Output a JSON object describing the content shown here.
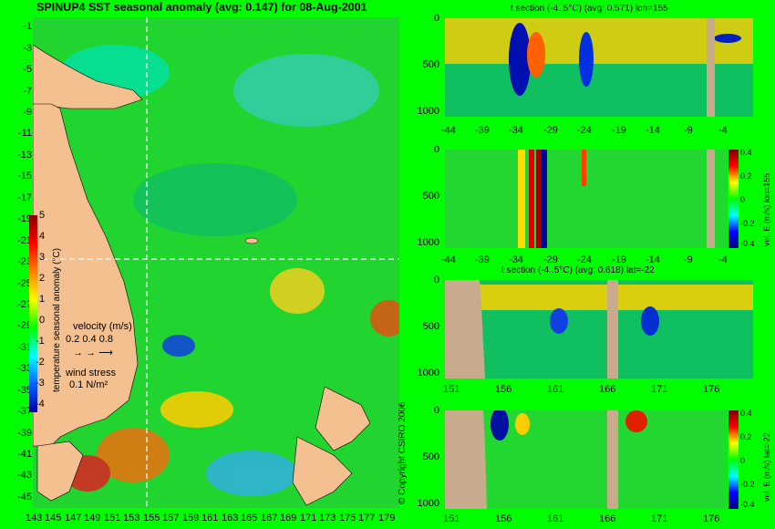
{
  "title": "SPINUP4 SST seasonal anomaly (avg: 0.147) for 08-Aug-2001",
  "colors": {
    "background": "#00fe00",
    "land": "#f4c090",
    "section_land": "#c8ab8c",
    "crosshair": "#ffffff"
  },
  "map": {
    "lat_ticks": [
      "-1",
      "-3",
      "-5",
      "-7",
      "-9",
      "-11",
      "-13",
      "-15",
      "-17",
      "-19",
      "-21",
      "-23",
      "-25",
      "-27",
      "-29",
      "-31",
      "-33",
      "-35",
      "-37",
      "-39",
      "-41",
      "-43",
      "-45"
    ],
    "lon_ticks": [
      "143",
      "145",
      "147",
      "149",
      "151",
      "153",
      "155",
      "157",
      "159",
      "161",
      "163",
      "165",
      "167",
      "169",
      "171",
      "173",
      "175",
      "177",
      "179"
    ],
    "colorbar_ticks": [
      "5",
      "4",
      "3",
      "2",
      "1",
      "0",
      "-1",
      "-2",
      "-3",
      "-4"
    ],
    "colorbar_label": "temperature seasonal anomaly (°C)",
    "velocity_legend": "velocity (m/s)",
    "velocity_scale": "0.2 0.4 0.8",
    "wind_legend": "wind stress",
    "wind_scale": "0.1 N/m²"
  },
  "copyright": "© Copyright CSIRO 2006",
  "chart_data": [
    {
      "type": "heatmap",
      "title": "t section (-4..5°C) (avg: 0.571) lon=155",
      "x_ticks": [
        "-44",
        "-39",
        "-34",
        "-29",
        "-24",
        "-19",
        "-14",
        "-9",
        "-4"
      ],
      "y_ticks": [
        "0",
        "500",
        "1000"
      ],
      "xlim": [
        -45,
        0
      ],
      "ylim": [
        1050,
        0
      ]
    },
    {
      "type": "heatmap",
      "title": "",
      "colorbar_label": "vel. E (m/s) lon=155",
      "colorbar_ticks": [
        "0.4",
        "0.2",
        "0",
        "-0.2",
        "-0.4"
      ],
      "x_ticks": [
        "-44",
        "-39",
        "-34",
        "-29",
        "-24",
        "-19",
        "-14",
        "-9",
        "-4"
      ],
      "y_ticks": [
        "0",
        "500",
        "1000"
      ],
      "xlim": [
        -45,
        0
      ],
      "ylim": [
        1050,
        0
      ]
    },
    {
      "type": "heatmap",
      "title": "t section (-4..5°C) (avg: 0.618) lat=-22",
      "x_ticks": [
        "151",
        "156",
        "161",
        "166",
        "171",
        "176"
      ],
      "y_ticks": [
        "0",
        "500",
        "1000"
      ],
      "xlim": [
        150,
        180
      ],
      "ylim": [
        1050,
        0
      ]
    },
    {
      "type": "heatmap",
      "title": "",
      "colorbar_label": "vel. E (m/s) lat=-22",
      "colorbar_ticks": [
        "0.4",
        "0.2",
        "0",
        "-0.2",
        "-0.4"
      ],
      "x_ticks": [
        "151",
        "156",
        "161",
        "166",
        "171",
        "176"
      ],
      "y_ticks": [
        "0",
        "500",
        "1000"
      ],
      "xlim": [
        150,
        180
      ],
      "ylim": [
        1050,
        0
      ]
    }
  ]
}
